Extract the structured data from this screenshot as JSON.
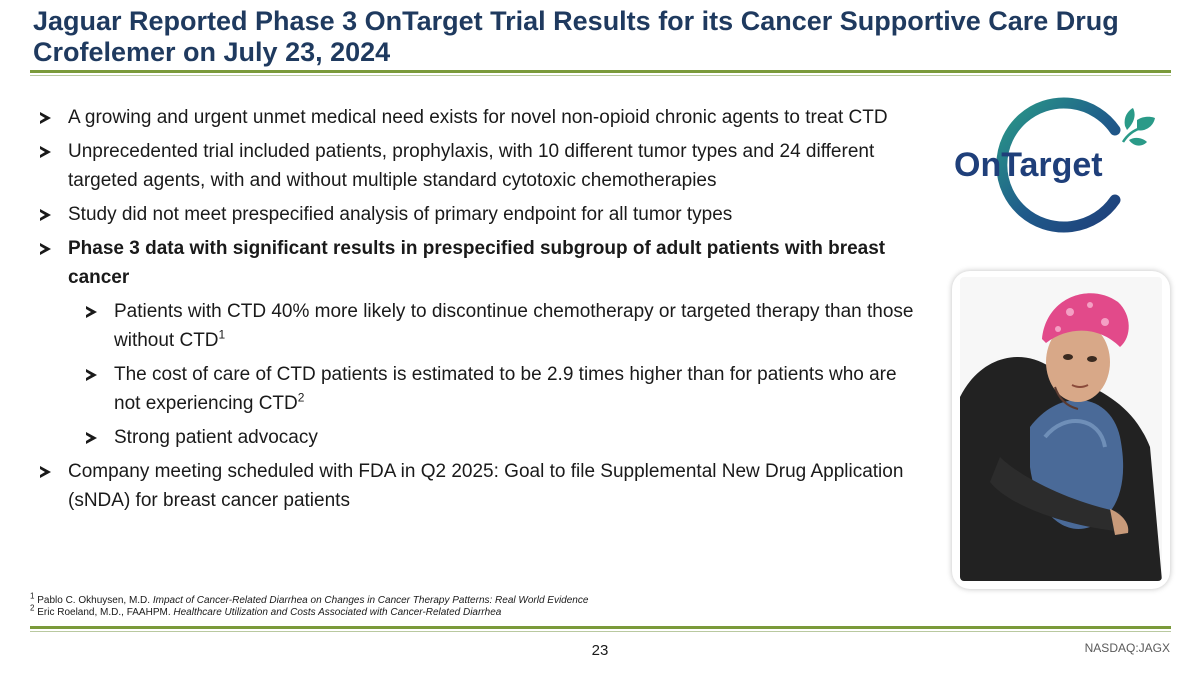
{
  "slide": {
    "title": "Jaguar Reported Phase 3 OnTarget Trial Results for its Cancer Supportive Care Drug Crofelemer on July 23, 2024",
    "page_number": "23",
    "ticker": "NASDAQ:JAGX"
  },
  "logo": {
    "text": "OnTarget"
  },
  "bullets": {
    "b1": "A growing and urgent unmet medical need exists for novel non-opioid chronic agents to treat CTD",
    "b2": "Unprecedented trial included patients, prophylaxis, with 10 different tumor types and 24 different targeted agents, with and without multiple standard cytotoxic chemotherapies",
    "b3": "Study did not meet prespecified analysis of primary endpoint for all tumor types",
    "b4": "Phase 3 data with significant results in prespecified subgroup of adult patients with breast cancer",
    "s1": "Patients with CTD 40% more likely to discontinue chemotherapy or targeted therapy than those without CTD",
    "s1_sup": "1",
    "s2": "The cost of care of CTD patients is estimated to be 2.9 times higher than for patients who are not experiencing CTD",
    "s2_sup": "2",
    "s3": "Strong patient advocacy",
    "b5": "Company meeting scheduled with FDA in Q2 2025: Goal to file Supplemental New Drug Application (sNDA) for breast cancer patients"
  },
  "footnotes": {
    "f1_num": "1",
    "f1_author": "Pablo C. Okhuysen, M.D.",
    "f1_title": "Impact of Cancer-Related Diarrhea on Changes in Cancer Therapy Patterns: Real World Evidence",
    "f2_num": "2",
    "f2_author": "Eric Roeland, M.D., FAAHPM.",
    "f2_title": "Healthcare Utilization and Costs Associated with Cancer-Related Diarrhea"
  },
  "colors": {
    "title": "#1f3a5f",
    "rule": "#7a9a3a",
    "logo_blue": "#1f3f7a",
    "logo_green": "#2a9a88"
  }
}
